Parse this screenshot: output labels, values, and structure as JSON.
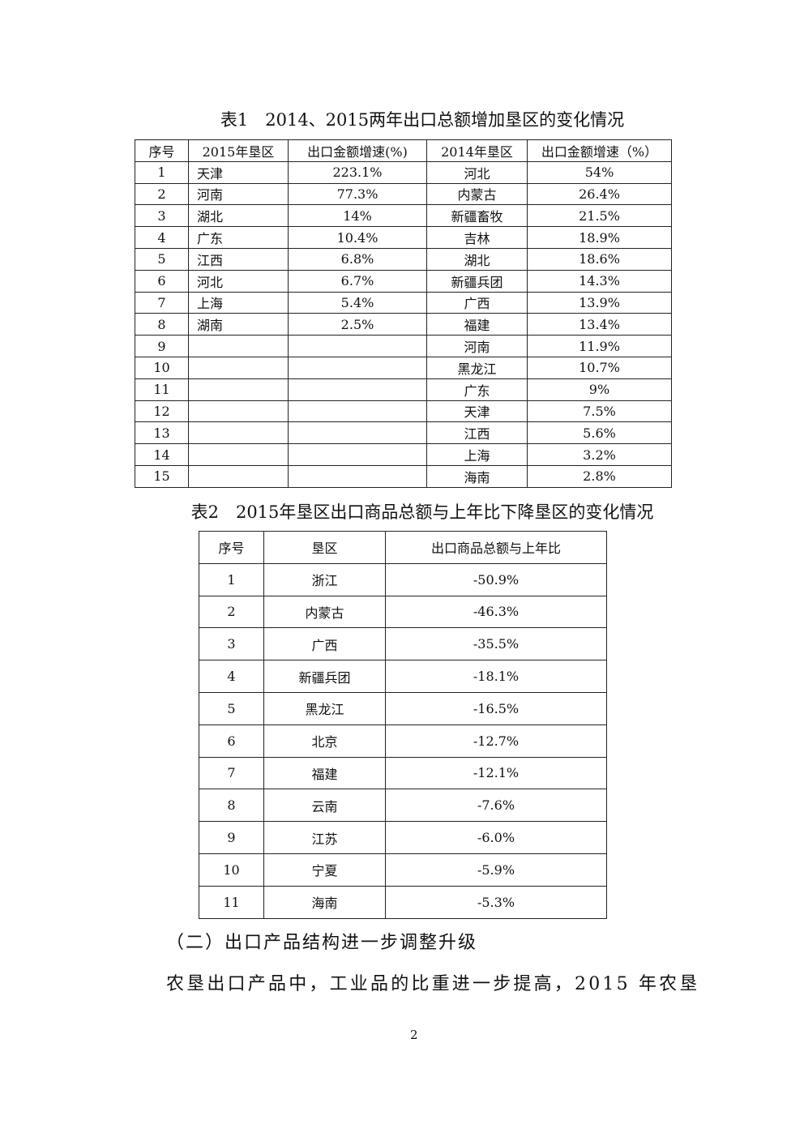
{
  "table1": {
    "title": "表1　2014、2015两年出口总额增加垦区的变化情况",
    "headers": [
      "序号",
      "2015年垦区",
      "出口金额增速(%)",
      "2014年垦区",
      "出口金额增速（%）"
    ],
    "rows": [
      [
        "1",
        "天津",
        "223.1%",
        "河北",
        "54%"
      ],
      [
        "2",
        "河南",
        "77.3%",
        "内蒙古",
        "26.4%"
      ],
      [
        "3",
        "湖北",
        "14%",
        "新疆畜牧",
        "21.5%"
      ],
      [
        "4",
        "广东",
        "10.4%",
        "吉林",
        "18.9%"
      ],
      [
        "5",
        "江西",
        "6.8%",
        "湖北",
        "18.6%"
      ],
      [
        "6",
        "河北",
        "6.7%",
        "新疆兵团",
        "14.3%"
      ],
      [
        "7",
        "上海",
        "5.4%",
        "广西",
        "13.9%"
      ],
      [
        "8",
        "湖南",
        "2.5%",
        "福建",
        "13.4%"
      ],
      [
        "9",
        "",
        "",
        "河南",
        "11.9%"
      ],
      [
        "10",
        "",
        "",
        "黑龙江",
        "10.7%"
      ],
      [
        "11",
        "",
        "",
        "广东",
        "9%"
      ],
      [
        "12",
        "",
        "",
        "天津",
        "7.5%"
      ],
      [
        "13",
        "",
        "",
        "江西",
        "5.6%"
      ],
      [
        "14",
        "",
        "",
        "上海",
        "3.2%"
      ],
      [
        "15",
        "",
        "",
        "海南",
        "2.8%"
      ]
    ]
  },
  "table2": {
    "title": "表2　2015年垦区出口商品总额与上年比下降垦区的变化情况",
    "headers": [
      "序号",
      "垦区",
      "出口商品总额与上年比"
    ],
    "rows": [
      [
        "1",
        "浙江",
        "-50.9%"
      ],
      [
        "2",
        "内蒙古",
        "-46.3%"
      ],
      [
        "3",
        "广西",
        "-35.5%"
      ],
      [
        "4",
        "新疆兵团",
        "-18.1%"
      ],
      [
        "5",
        "黑龙江",
        "-16.5%"
      ],
      [
        "6",
        "北京",
        "-12.7%"
      ],
      [
        "7",
        "福建",
        "-12.1%"
      ],
      [
        "8",
        "云南",
        "-7.6%"
      ],
      [
        "9",
        "江苏",
        "-6.0%"
      ],
      [
        "10",
        "宁夏",
        "-5.9%"
      ],
      [
        "11",
        "海南",
        "-5.3%"
      ]
    ]
  },
  "section_heading": "（二）出口产品结构进一步调整升级",
  "paragraph": "农垦出口产品中，工业品的比重进一步提高，2015 年农垦",
  "page_number": "2"
}
